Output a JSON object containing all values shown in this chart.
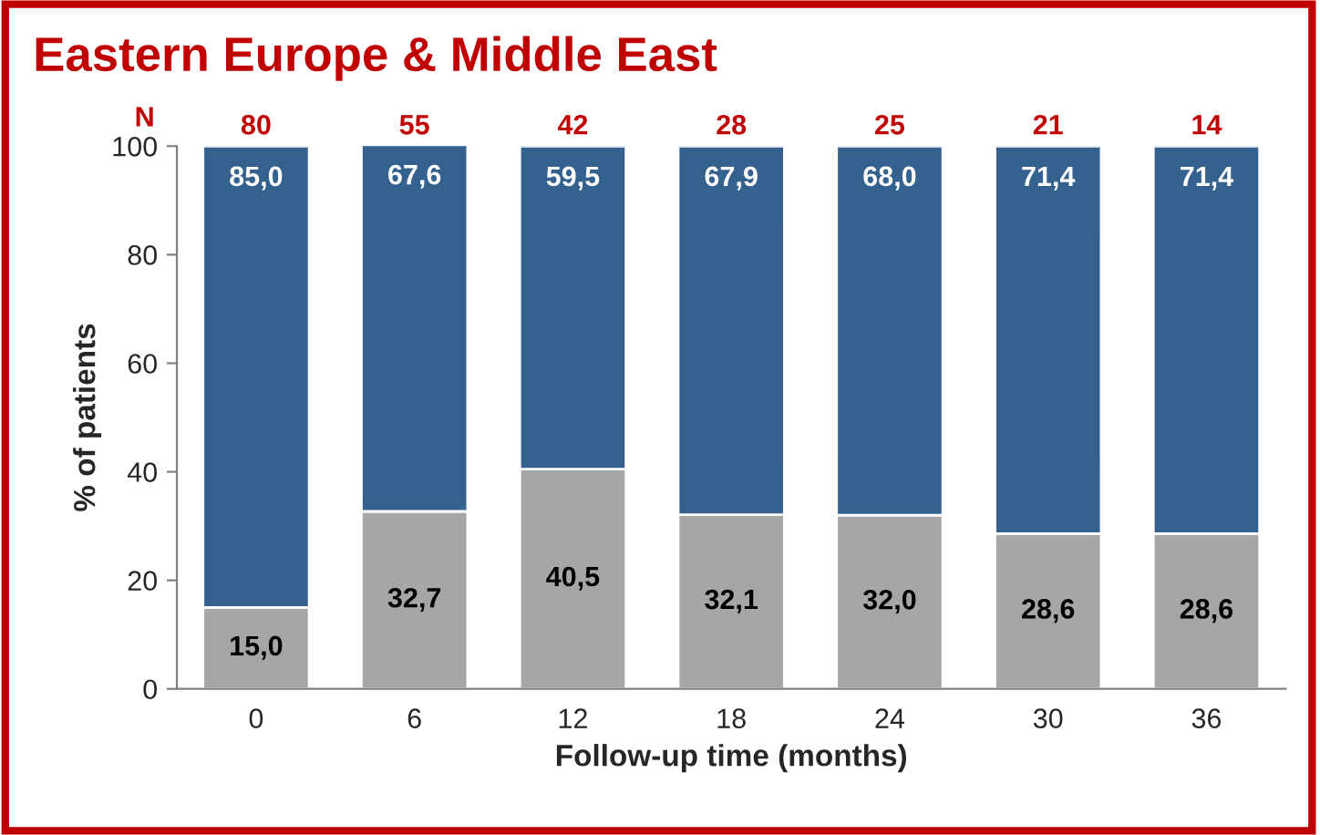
{
  "chart_data": {
    "type": "bar",
    "stacked": true,
    "title": "Eastern Europe & Middle East",
    "xlabel": "Follow-up time (months)",
    "ylabel": "% of patients",
    "categories": [
      "0",
      "6",
      "12",
      "18",
      "24",
      "30",
      "36"
    ],
    "series": [
      {
        "color": "#a6a6a6",
        "values": [
          15.0,
          32.7,
          40.5,
          32.1,
          32.0,
          28.6,
          28.6
        ],
        "value_labels": [
          "15,0",
          "32,7",
          "40,5",
          "32,1",
          "32,0",
          "28,6",
          "28,6"
        ]
      },
      {
        "color": "#35618f",
        "values": [
          85.0,
          67.6,
          59.5,
          67.9,
          68.0,
          71.4,
          71.4
        ],
        "value_labels": [
          "85,0",
          "67,6",
          "59,5",
          "67,9",
          "68,0",
          "71,4",
          "71,4"
        ]
      }
    ],
    "ylim": [
      0,
      100
    ],
    "yticks": [
      0,
      20,
      40,
      60,
      80,
      100
    ],
    "grid": false,
    "legend": false,
    "annotations": [
      "N",
      "80",
      "55",
      "42",
      "28",
      "25",
      "21",
      "14"
    ]
  }
}
